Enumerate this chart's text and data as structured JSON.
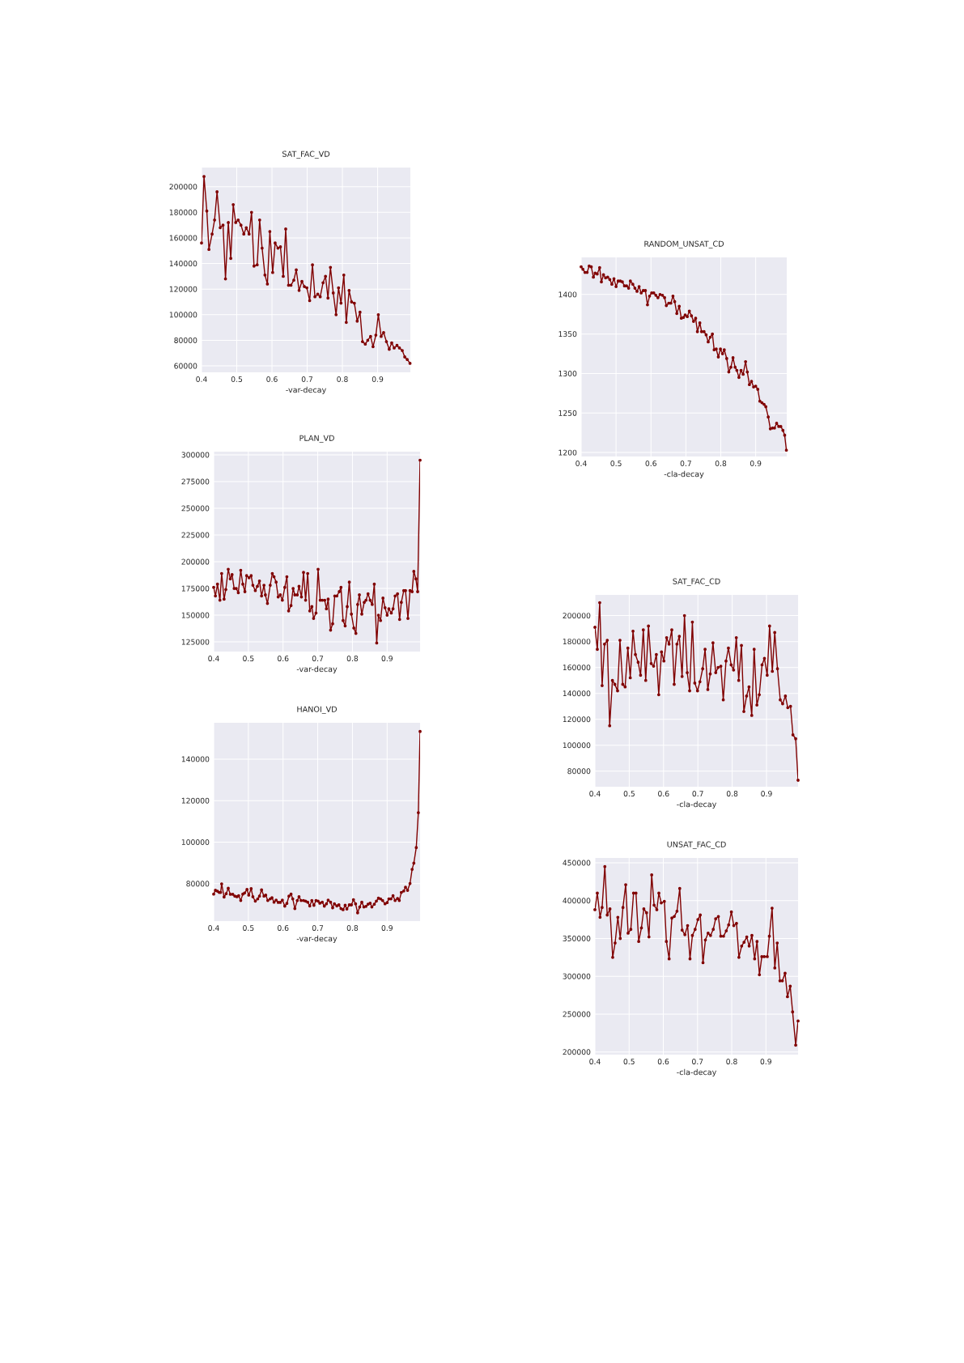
{
  "chart_data": [
    {
      "type": "line",
      "title": "SAT_FAC_VD",
      "xlabel": "-var-decay",
      "color": "#800000",
      "grid": true,
      "marker": "circle",
      "xlim": [
        0.4,
        0.993
      ],
      "ylim": [
        55000,
        215000
      ],
      "xticks": [
        0.4,
        0.5,
        0.6,
        0.7,
        0.8,
        0.9
      ],
      "yticks": [
        60000,
        80000,
        100000,
        120000,
        140000,
        160000,
        180000,
        200000
      ],
      "x": [
        0.4,
        0.407,
        0.415,
        0.421,
        0.43,
        0.437,
        0.444,
        0.453,
        0.461,
        0.468,
        0.476,
        0.483,
        0.49,
        0.497,
        0.504,
        0.512,
        0.52,
        0.527,
        0.535,
        0.542,
        0.549,
        0.558,
        0.565,
        0.572,
        0.58,
        0.587,
        0.594,
        0.602,
        0.609,
        0.617,
        0.624,
        0.632,
        0.639,
        0.647,
        0.654,
        0.662,
        0.669,
        0.677,
        0.685,
        0.692,
        0.699,
        0.707,
        0.715,
        0.722,
        0.73,
        0.737,
        0.745,
        0.752,
        0.759,
        0.766,
        0.774,
        0.782,
        0.789,
        0.796,
        0.804,
        0.811,
        0.819,
        0.826,
        0.834,
        0.842,
        0.85,
        0.857,
        0.865,
        0.872,
        0.88,
        0.887,
        0.895,
        0.902,
        0.91,
        0.917,
        0.925,
        0.933,
        0.94,
        0.947,
        0.955,
        0.962,
        0.97,
        0.977,
        0.984,
        0.992
      ],
      "values": [
        156000,
        208000,
        181000,
        151000,
        163000,
        174000,
        196000,
        168000,
        170000,
        128000,
        172000,
        144000,
        186000,
        172000,
        174000,
        170000,
        163000,
        168000,
        163000,
        180000,
        138000,
        139000,
        174000,
        152000,
        131000,
        124000,
        165000,
        133000,
        156000,
        152000,
        153000,
        130000,
        167000,
        123000,
        123000,
        127000,
        135000,
        119000,
        126000,
        122000,
        121000,
        111000,
        139000,
        114000,
        116000,
        114000,
        125000,
        130000,
        113000,
        137000,
        117000,
        100000,
        121000,
        109000,
        131000,
        94000,
        119000,
        110000,
        109000,
        95000,
        102000,
        79000,
        77000,
        80000,
        83000,
        75000,
        84000,
        100000,
        83000,
        86000,
        79000,
        73000,
        78000,
        74000,
        76000,
        74000,
        72000,
        67000,
        65000,
        62000
      ]
    },
    {
      "type": "line",
      "title": "RANDOM_UNSAT_CD",
      "xlabel": "-cla-decay",
      "color": "#800000",
      "grid": true,
      "marker": "circle",
      "xlim": [
        0.4,
        0.989
      ],
      "ylim": [
        1195,
        1447
      ],
      "xticks": [
        0.4,
        0.5,
        0.6,
        0.7,
        0.8,
        0.9
      ],
      "yticks": [
        1200,
        1250,
        1300,
        1350,
        1400
      ],
      "x": [
        0.4,
        0.405,
        0.411,
        0.417,
        0.423,
        0.429,
        0.435,
        0.44,
        0.446,
        0.453,
        0.458,
        0.464,
        0.47,
        0.476,
        0.482,
        0.488,
        0.494,
        0.5,
        0.506,
        0.512,
        0.518,
        0.524,
        0.53,
        0.536,
        0.541,
        0.548,
        0.554,
        0.56,
        0.566,
        0.572,
        0.578,
        0.584,
        0.59,
        0.596,
        0.602,
        0.608,
        0.614,
        0.62,
        0.626,
        0.633,
        0.639,
        0.644,
        0.651,
        0.657,
        0.663,
        0.668,
        0.674,
        0.681,
        0.687,
        0.693,
        0.698,
        0.704,
        0.71,
        0.716,
        0.722,
        0.728,
        0.733,
        0.74,
        0.745,
        0.752,
        0.758,
        0.764,
        0.77,
        0.776,
        0.781,
        0.787,
        0.793,
        0.799,
        0.805,
        0.81,
        0.817,
        0.823,
        0.829,
        0.835,
        0.841,
        0.846,
        0.852,
        0.858,
        0.864,
        0.871,
        0.876,
        0.882,
        0.888,
        0.894,
        0.9,
        0.906,
        0.912,
        0.918,
        0.924,
        0.929,
        0.936,
        0.942,
        0.948,
        0.954,
        0.96,
        0.966,
        0.972,
        0.978,
        0.983,
        0.988
      ],
      "values": [
        1435,
        1432,
        1428,
        1428,
        1436,
        1435,
        1422,
        1427,
        1426,
        1434,
        1416,
        1425,
        1421,
        1422,
        1419,
        1413,
        1420,
        1410,
        1417,
        1417,
        1416,
        1411,
        1411,
        1408,
        1417,
        1413,
        1408,
        1404,
        1410,
        1402,
        1405,
        1405,
        1387,
        1398,
        1402,
        1402,
        1399,
        1396,
        1400,
        1399,
        1396,
        1386,
        1389,
        1389,
        1398,
        1391,
        1376,
        1385,
        1370,
        1371,
        1374,
        1372,
        1379,
        1373,
        1366,
        1370,
        1353,
        1364,
        1353,
        1353,
        1349,
        1340,
        1346,
        1350,
        1330,
        1331,
        1321,
        1331,
        1325,
        1330,
        1319,
        1302,
        1308,
        1320,
        1308,
        1304,
        1295,
        1304,
        1299,
        1315,
        1302,
        1286,
        1290,
        1283,
        1284,
        1280,
        1265,
        1263,
        1261,
        1258,
        1245,
        1230,
        1231,
        1231,
        1237,
        1233,
        1233,
        1228,
        1222,
        1203
      ]
    },
    {
      "type": "line",
      "title": "PLAN_VD",
      "xlabel": "-var-decay",
      "color": "#800000",
      "grid": true,
      "marker": "circle",
      "xlim": [
        0.4,
        0.995
      ],
      "ylim": [
        116000,
        303000
      ],
      "xticks": [
        0.4,
        0.5,
        0.6,
        0.7,
        0.8,
        0.9
      ],
      "yticks": [
        125000,
        150000,
        175000,
        200000,
        225000,
        250000,
        275000,
        300000
      ],
      "x": [
        0.4,
        0.405,
        0.411,
        0.418,
        0.423,
        0.43,
        0.435,
        0.442,
        0.448,
        0.453,
        0.459,
        0.465,
        0.471,
        0.478,
        0.484,
        0.49,
        0.495,
        0.502,
        0.508,
        0.513,
        0.52,
        0.526,
        0.532,
        0.538,
        0.545,
        0.549,
        0.555,
        0.563,
        0.569,
        0.574,
        0.58,
        0.586,
        0.592,
        0.598,
        0.605,
        0.611,
        0.616,
        0.623,
        0.629,
        0.634,
        0.641,
        0.646,
        0.653,
        0.659,
        0.665,
        0.671,
        0.677,
        0.683,
        0.688,
        0.695,
        0.701,
        0.707,
        0.713,
        0.72,
        0.725,
        0.73,
        0.737,
        0.743,
        0.749,
        0.755,
        0.762,
        0.767,
        0.773,
        0.779,
        0.785,
        0.791,
        0.797,
        0.804,
        0.81,
        0.815,
        0.82,
        0.827,
        0.834,
        0.839,
        0.845,
        0.851,
        0.857,
        0.863,
        0.87,
        0.875,
        0.881,
        0.888,
        0.894,
        0.9,
        0.905,
        0.912,
        0.917,
        0.923,
        0.93,
        0.936,
        0.941,
        0.948,
        0.953,
        0.96,
        0.966,
        0.972,
        0.977,
        0.983,
        0.988,
        0.995
      ],
      "values": [
        176000,
        168000,
        179000,
        164000,
        189000,
        165000,
        174000,
        193000,
        184000,
        188000,
        175000,
        175000,
        171000,
        192000,
        179000,
        172000,
        187000,
        185000,
        187000,
        178000,
        173000,
        177000,
        182000,
        168000,
        178000,
        169000,
        161000,
        178000,
        189000,
        186000,
        181000,
        167000,
        169000,
        164000,
        176000,
        186000,
        154000,
        159000,
        175000,
        169000,
        169000,
        177000,
        167000,
        190000,
        164000,
        189000,
        154000,
        158000,
        147000,
        152000,
        193000,
        164000,
        164000,
        164000,
        156000,
        165000,
        136000,
        142000,
        168000,
        168000,
        172000,
        176000,
        145000,
        140000,
        158000,
        181000,
        151000,
        138000,
        133000,
        160000,
        169000,
        151000,
        162000,
        164000,
        170000,
        164000,
        160000,
        179000,
        124000,
        150000,
        145000,
        166000,
        157000,
        150000,
        156000,
        152000,
        156000,
        168000,
        170000,
        146000,
        162000,
        173000,
        173000,
        147000,
        173000,
        172000,
        191000,
        184000,
        172000,
        295000
      ]
    },
    {
      "type": "line",
      "title": "SAT_FAC_CD",
      "xlabel": "-cla-decay",
      "color": "#800000",
      "grid": true,
      "marker": "circle",
      "xlim": [
        0.4,
        0.992
      ],
      "ylim": [
        68000,
        216000
      ],
      "xticks": [
        0.4,
        0.5,
        0.6,
        0.7,
        0.8,
        0.9
      ],
      "yticks": [
        80000,
        100000,
        120000,
        140000,
        160000,
        180000,
        200000
      ],
      "x": [
        0.4,
        0.407,
        0.414,
        0.421,
        0.428,
        0.436,
        0.443,
        0.451,
        0.458,
        0.466,
        0.473,
        0.481,
        0.488,
        0.496,
        0.503,
        0.511,
        0.518,
        0.526,
        0.533,
        0.541,
        0.548,
        0.556,
        0.564,
        0.571,
        0.579,
        0.586,
        0.594,
        0.601,
        0.609,
        0.616,
        0.624,
        0.631,
        0.639,
        0.646,
        0.654,
        0.661,
        0.669,
        0.676,
        0.684,
        0.691,
        0.699,
        0.706,
        0.714,
        0.721,
        0.729,
        0.736,
        0.744,
        0.752,
        0.759,
        0.767,
        0.774,
        0.782,
        0.789,
        0.797,
        0.804,
        0.812,
        0.819,
        0.827,
        0.834,
        0.842,
        0.849,
        0.857,
        0.864,
        0.872,
        0.879,
        0.887,
        0.894,
        0.902,
        0.909,
        0.917,
        0.924,
        0.932,
        0.94,
        0.947,
        0.955,
        0.962,
        0.97,
        0.977,
        0.985,
        0.992
      ],
      "values": [
        191000,
        174000,
        210000,
        146000,
        178000,
        181000,
        115000,
        150000,
        147000,
        142000,
        181000,
        147000,
        145000,
        175000,
        152000,
        188000,
        170000,
        164000,
        154000,
        189000,
        150000,
        192000,
        163000,
        161000,
        170000,
        139000,
        172000,
        165000,
        183000,
        178000,
        189000,
        147000,
        178000,
        184000,
        153000,
        200000,
        156000,
        142000,
        195000,
        148000,
        142000,
        149000,
        159000,
        174000,
        143000,
        155000,
        179000,
        156000,
        160000,
        161000,
        135000,
        165000,
        175000,
        162000,
        158000,
        183000,
        150000,
        177000,
        126000,
        138000,
        145000,
        123000,
        174000,
        131000,
        139000,
        162000,
        167000,
        154000,
        192000,
        157000,
        187000,
        159000,
        135000,
        132000,
        138000,
        129000,
        130000,
        108000,
        105000,
        73000
      ]
    },
    {
      "type": "line",
      "title": "HANOI_VD",
      "xlabel": "-var-decay",
      "color": "#800000",
      "grid": true,
      "marker": "circle",
      "xlim": [
        0.4,
        0.995
      ],
      "ylim": [
        62000,
        157500
      ],
      "xticks": [
        0.4,
        0.5,
        0.6,
        0.7,
        0.8,
        0.9
      ],
      "yticks": [
        80000,
        100000,
        120000,
        140000
      ],
      "x": [
        0.4,
        0.405,
        0.411,
        0.416,
        0.42,
        0.423,
        0.43,
        0.436,
        0.442,
        0.448,
        0.455,
        0.461,
        0.467,
        0.472,
        0.478,
        0.484,
        0.489,
        0.496,
        0.501,
        0.508,
        0.513,
        0.52,
        0.527,
        0.532,
        0.538,
        0.545,
        0.55,
        0.556,
        0.563,
        0.568,
        0.574,
        0.58,
        0.586,
        0.592,
        0.598,
        0.605,
        0.611,
        0.617,
        0.623,
        0.628,
        0.634,
        0.641,
        0.646,
        0.652,
        0.659,
        0.665,
        0.671,
        0.677,
        0.683,
        0.689,
        0.695,
        0.701,
        0.706,
        0.713,
        0.719,
        0.725,
        0.73,
        0.737,
        0.743,
        0.748,
        0.755,
        0.761,
        0.767,
        0.773,
        0.779,
        0.784,
        0.791,
        0.797,
        0.803,
        0.809,
        0.815,
        0.821,
        0.827,
        0.833,
        0.839,
        0.845,
        0.851,
        0.856,
        0.863,
        0.869,
        0.875,
        0.881,
        0.887,
        0.894,
        0.9,
        0.905,
        0.911,
        0.917,
        0.923,
        0.93,
        0.935,
        0.941,
        0.948,
        0.953,
        0.959,
        0.966,
        0.972,
        0.977,
        0.984,
        0.99,
        0.995
      ],
      "values": [
        75000,
        76800,
        76400,
        75800,
        75800,
        79900,
        73600,
        75200,
        77800,
        74900,
        74900,
        74000,
        73700,
        74200,
        71900,
        75000,
        75500,
        77200,
        74500,
        77600,
        73700,
        71600,
        72700,
        74000,
        77000,
        74000,
        74500,
        71900,
        72700,
        73200,
        71100,
        72100,
        71000,
        71000,
        72100,
        69200,
        70500,
        74000,
        75000,
        72700,
        68000,
        71900,
        73700,
        71900,
        71900,
        71600,
        71100,
        69300,
        71900,
        69600,
        71900,
        71600,
        70600,
        71100,
        69200,
        70300,
        72100,
        71100,
        68400,
        70300,
        69300,
        69800,
        68000,
        67500,
        69600,
        67800,
        69800,
        69800,
        72300,
        70300,
        66000,
        68800,
        71100,
        68800,
        69100,
        70100,
        70600,
        68800,
        70100,
        71600,
        73000,
        72700,
        71900,
        70300,
        70900,
        72700,
        72700,
        74200,
        71900,
        72900,
        71900,
        75800,
        76500,
        78300,
        76800,
        80100,
        86900,
        89900,
        97400,
        114200,
        153300
      ]
    },
    {
      "type": "line",
      "title": "UNSAT_FAC_CD",
      "xlabel": "-cla-decay",
      "color": "#800000",
      "grid": true,
      "marker": "circle",
      "xlim": [
        0.4,
        0.994
      ],
      "ylim": [
        196500,
        456400
      ],
      "xticks": [
        0.4,
        0.5,
        0.6,
        0.7,
        0.8,
        0.9
      ],
      "yticks": [
        200000,
        250000,
        300000,
        350000,
        400000,
        450000
      ],
      "x": [
        0.4,
        0.407,
        0.415,
        0.421,
        0.429,
        0.436,
        0.444,
        0.452,
        0.459,
        0.467,
        0.474,
        0.482,
        0.49,
        0.497,
        0.505,
        0.513,
        0.52,
        0.528,
        0.536,
        0.543,
        0.551,
        0.558,
        0.566,
        0.573,
        0.581,
        0.587,
        0.594,
        0.603,
        0.609,
        0.617,
        0.625,
        0.632,
        0.64,
        0.648,
        0.655,
        0.663,
        0.671,
        0.678,
        0.685,
        0.693,
        0.701,
        0.708,
        0.716,
        0.723,
        0.731,
        0.738,
        0.746,
        0.753,
        0.761,
        0.768,
        0.776,
        0.784,
        0.791,
        0.799,
        0.806,
        0.814,
        0.821,
        0.829,
        0.836,
        0.844,
        0.851,
        0.859,
        0.867,
        0.874,
        0.881,
        0.888,
        0.895,
        0.904,
        0.91,
        0.918,
        0.926,
        0.933,
        0.941,
        0.948,
        0.956,
        0.963,
        0.971,
        0.978,
        0.987,
        0.994
      ],
      "values": [
        388000,
        410000,
        378000,
        391000,
        445000,
        381000,
        389000,
        325000,
        344000,
        378000,
        350000,
        391000,
        421000,
        357000,
        362000,
        410000,
        410000,
        346000,
        364000,
        389000,
        384000,
        352000,
        434000,
        394000,
        388000,
        410000,
        397000,
        399000,
        346000,
        323000,
        377000,
        379000,
        386000,
        416000,
        361000,
        355000,
        367000,
        323000,
        354000,
        362000,
        375000,
        381000,
        318000,
        348000,
        357000,
        354000,
        362000,
        376000,
        379000,
        353000,
        353000,
        360000,
        368000,
        385000,
        367000,
        370000,
        325000,
        340000,
        345000,
        352000,
        340000,
        354000,
        323000,
        346000,
        302000,
        326000,
        326000,
        326000,
        353000,
        390000,
        311000,
        344000,
        294000,
        294000,
        304000,
        273000,
        287000,
        253000,
        209000,
        241000
      ]
    }
  ]
}
